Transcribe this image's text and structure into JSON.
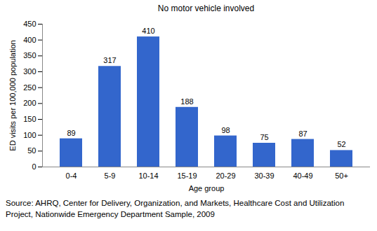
{
  "chart_data": {
    "type": "bar",
    "title": "No motor vehicle involved",
    "xlabel": "Age group",
    "ylabel": "ED visits per 100,000 population",
    "categories": [
      "0-4",
      "5-9",
      "10-14",
      "15-19",
      "20-29",
      "30-39",
      "40-49",
      "50+"
    ],
    "values": [
      89,
      317,
      410,
      188,
      98,
      75,
      87,
      52
    ],
    "color": "#3366cc",
    "ylim": [
      0,
      450
    ],
    "yticks": [
      0,
      50,
      100,
      150,
      200,
      250,
      300,
      350,
      400,
      450
    ],
    "grid": false,
    "data_labels": true,
    "caption": "Source: AHRQ, Center for Delivery, Organization, and Markets, Healthcare Cost and Utilization Project, Nationwide Emergency Department Sample, 2009"
  }
}
